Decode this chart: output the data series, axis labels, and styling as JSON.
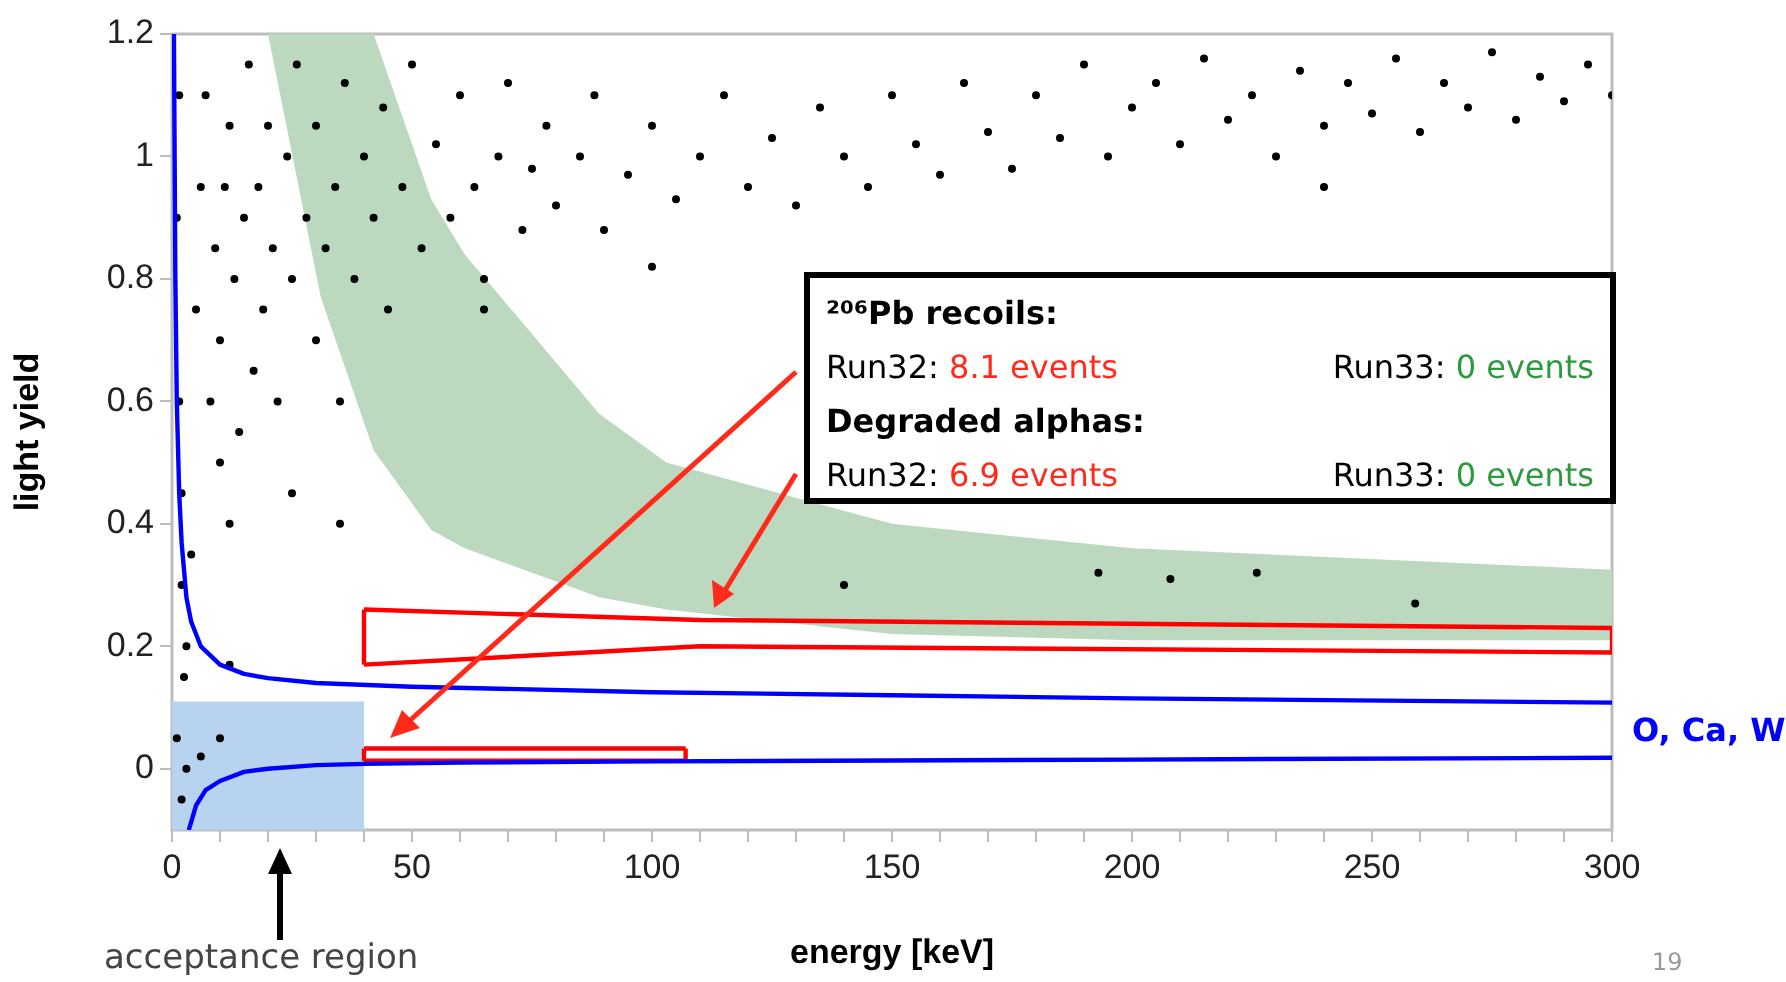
{
  "chart_data": {
    "type": "scatter",
    "xlabel": "energy [keV]",
    "ylabel": "light yield",
    "xlim": [
      0,
      300
    ],
    "ylim": [
      -0.1,
      1.2
    ],
    "xticks": [
      0,
      {
        "value": 10,
        "label": null
      },
      {
        "value": 20,
        "label": null
      },
      {
        "value": 30,
        "label": null
      },
      {
        "value": 40,
        "label": null
      },
      50,
      {
        "value": 60,
        "label": null
      },
      {
        "value": 70,
        "label": null
      },
      {
        "value": 80,
        "label": null
      },
      {
        "value": 90,
        "label": null
      },
      100,
      {
        "value": 110,
        "label": null
      },
      {
        "value": 120,
        "label": null
      },
      {
        "value": 130,
        "label": null
      },
      {
        "value": 140,
        "label": null
      },
      150,
      {
        "value": 160,
        "label": null
      },
      {
        "value": 170,
        "label": null
      },
      {
        "value": 180,
        "label": null
      },
      {
        "value": 190,
        "label": null
      },
      200,
      {
        "value": 210,
        "label": null
      },
      {
        "value": 220,
        "label": null
      },
      {
        "value": 230,
        "label": null
      },
      {
        "value": 240,
        "label": null
      },
      250,
      {
        "value": 260,
        "label": null
      },
      {
        "value": 270,
        "label": null
      },
      {
        "value": 280,
        "label": null
      },
      {
        "value": 290,
        "label": null
      },
      300
    ],
    "yticks": [
      0,
      0.2,
      0.4,
      0.6,
      0.8,
      1,
      1.2
    ],
    "grid": false,
    "legend": false,
    "series": [
      {
        "type": "area",
        "color": "#bcd9c0",
        "x": [
          20,
          31,
          42,
          54,
          61,
          89,
          103,
          150,
          200,
          300
        ],
        "values": [
          null,
          null,
          null,
          null,
          null,
          null,
          null,
          null,
          null,
          null
        ],
        "lower": [
          1.2,
          0.77,
          0.52,
          0.39,
          0.36,
          0.28,
          0.26,
          0.22,
          0.21,
          0.21
        ],
        "upper": [
          1.2,
          1.2,
          1.2,
          0.93,
          0.84,
          0.58,
          0.5,
          0.4,
          0.36,
          0.325
        ]
      },
      {
        "type": "area",
        "color": "#b8d3f0",
        "x": [
          0,
          40
        ],
        "values": [
          null,
          null
        ],
        "lower": [
          -0.1,
          -0.1
        ],
        "upper": [
          0.11,
          0.11
        ]
      },
      {
        "type": "scatter",
        "color": "#000000",
        "marker": "circle",
        "x": [
          1,
          1.5,
          2,
          2,
          2.5,
          1,
          2,
          3,
          3,
          4,
          1.5,
          5,
          6,
          7,
          8,
          9,
          10,
          10,
          11,
          12,
          12,
          13,
          14,
          15,
          16,
          17,
          18,
          19,
          20,
          21,
          22,
          24,
          25,
          26,
          28,
          30,
          30,
          32,
          34,
          35,
          36,
          38,
          40,
          42,
          44,
          45,
          48,
          50,
          52,
          55,
          58,
          60,
          63,
          65,
          68,
          70,
          73,
          75,
          78,
          80,
          85,
          88,
          90,
          95,
          100,
          105,
          110,
          115,
          120,
          125,
          130,
          135,
          140,
          145,
          150,
          155,
          160,
          165,
          170,
          175,
          180,
          185,
          190,
          195,
          200,
          205,
          210,
          215,
          220,
          225,
          230,
          235,
          240,
          240,
          245,
          250,
          255,
          260,
          265,
          270,
          275,
          280,
          285,
          290,
          295,
          300,
          25,
          35,
          12,
          10,
          6,
          140,
          193,
          208,
          226,
          259,
          65,
          100
        ],
        "values": [
          0.9,
          0.6,
          0.45,
          0.3,
          0.15,
          0.05,
          -0.05,
          0,
          0.2,
          0.35,
          1.1,
          0.75,
          0.95,
          1.1,
          0.6,
          0.85,
          0.5,
          0.7,
          0.95,
          0.4,
          1.05,
          0.8,
          0.55,
          0.9,
          1.15,
          0.65,
          0.95,
          0.75,
          1.05,
          0.85,
          0.6,
          1,
          0.8,
          1.15,
          0.9,
          0.7,
          1.05,
          0.85,
          0.95,
          0.6,
          1.12,
          0.8,
          1,
          0.9,
          1.08,
          0.75,
          0.95,
          1.15,
          0.85,
          1.02,
          0.9,
          1.1,
          0.95,
          0.8,
          1,
          1.12,
          0.88,
          0.98,
          1.05,
          0.92,
          1,
          1.1,
          0.88,
          0.97,
          1.05,
          0.93,
          1,
          1.1,
          0.95,
          1.03,
          0.92,
          1.08,
          1,
          0.95,
          1.1,
          1.02,
          0.97,
          1.12,
          1.04,
          0.98,
          1.1,
          1.03,
          1.15,
          1,
          1.08,
          1.12,
          1.02,
          1.16,
          1.06,
          1.1,
          1,
          1.14,
          1.05,
          0.95,
          1.12,
          1.07,
          1.16,
          1.04,
          1.12,
          1.08,
          1.17,
          1.06,
          1.13,
          1.09,
          1.15,
          1.1,
          0.45,
          0.4,
          0.17,
          0.05,
          0.02,
          0.3,
          0.32,
          0.31,
          0.32,
          0.27,
          0.75,
          0.82
        ]
      },
      {
        "type": "line",
        "name": "O, Ca, W",
        "color": "#0000ff",
        "marker": "none",
        "x": [
          0.4,
          0.7,
          1,
          1.5,
          2,
          3,
          4,
          6,
          10,
          15,
          20,
          30,
          50,
          100,
          150,
          200,
          300
        ],
        "values": [
          1.2,
          0.8,
          0.6,
          0.45,
          0.37,
          0.28,
          0.24,
          0.2,
          0.17,
          0.155,
          0.148,
          0.14,
          0.134,
          0.125,
          0.12,
          0.115,
          0.108
        ]
      },
      {
        "type": "line",
        "color": "#0000ff",
        "marker": "none",
        "x": [
          3.5,
          5,
          7,
          10,
          15,
          20,
          30,
          40,
          60,
          100,
          200,
          300
        ],
        "values": [
          -0.1,
          -0.06,
          -0.035,
          -0.02,
          -0.005,
          0,
          0.006,
          0.008,
          0.01,
          0.012,
          0.015,
          0.018
        ]
      },
      {
        "type": "line",
        "color": "#ff0000",
        "marker": "none",
        "x": [
          40,
          110,
          300
        ],
        "values": [
          0.26,
          0.243,
          0.23
        ]
      },
      {
        "type": "line",
        "color": "#ff0000",
        "marker": "none",
        "x": [
          40,
          110,
          300
        ],
        "values": [
          0.17,
          0.2,
          0.19
        ]
      },
      {
        "type": "line",
        "color": "#ff0000",
        "marker": "none",
        "x": [
          40,
          40
        ],
        "values": [
          0.17,
          0.26
        ]
      },
      {
        "type": "line",
        "color": "#ff0000",
        "marker": "none",
        "x": [
          300,
          300
        ],
        "values": [
          0.19,
          0.23
        ]
      },
      {
        "type": "line",
        "color": "#ff0000",
        "marker": "none",
        "x": [
          40,
          107
        ],
        "values": [
          0.033,
          0.033
        ]
      },
      {
        "type": "line",
        "color": "#ff0000",
        "marker": "none",
        "x": [
          40,
          107
        ],
        "values": [
          0.013,
          0.013
        ]
      },
      {
        "type": "line",
        "color": "#ff0000",
        "marker": "none",
        "x": [
          40,
          40
        ],
        "values": [
          0.013,
          0.033
        ]
      },
      {
        "type": "line",
        "color": "#ff0000",
        "marker": "none",
        "x": [
          107,
          107
        ],
        "values": [
          0.013,
          0.033
        ]
      }
    ],
    "annotations": [
      "²⁰⁶Pb recoils:",
      "Run32: 8.1 events",
      "Run33: 0 events",
      "Degraded alphas:",
      "Run32: 6.9 events",
      "Run33: 0 events",
      "acceptance region",
      "19"
    ]
  }
}
